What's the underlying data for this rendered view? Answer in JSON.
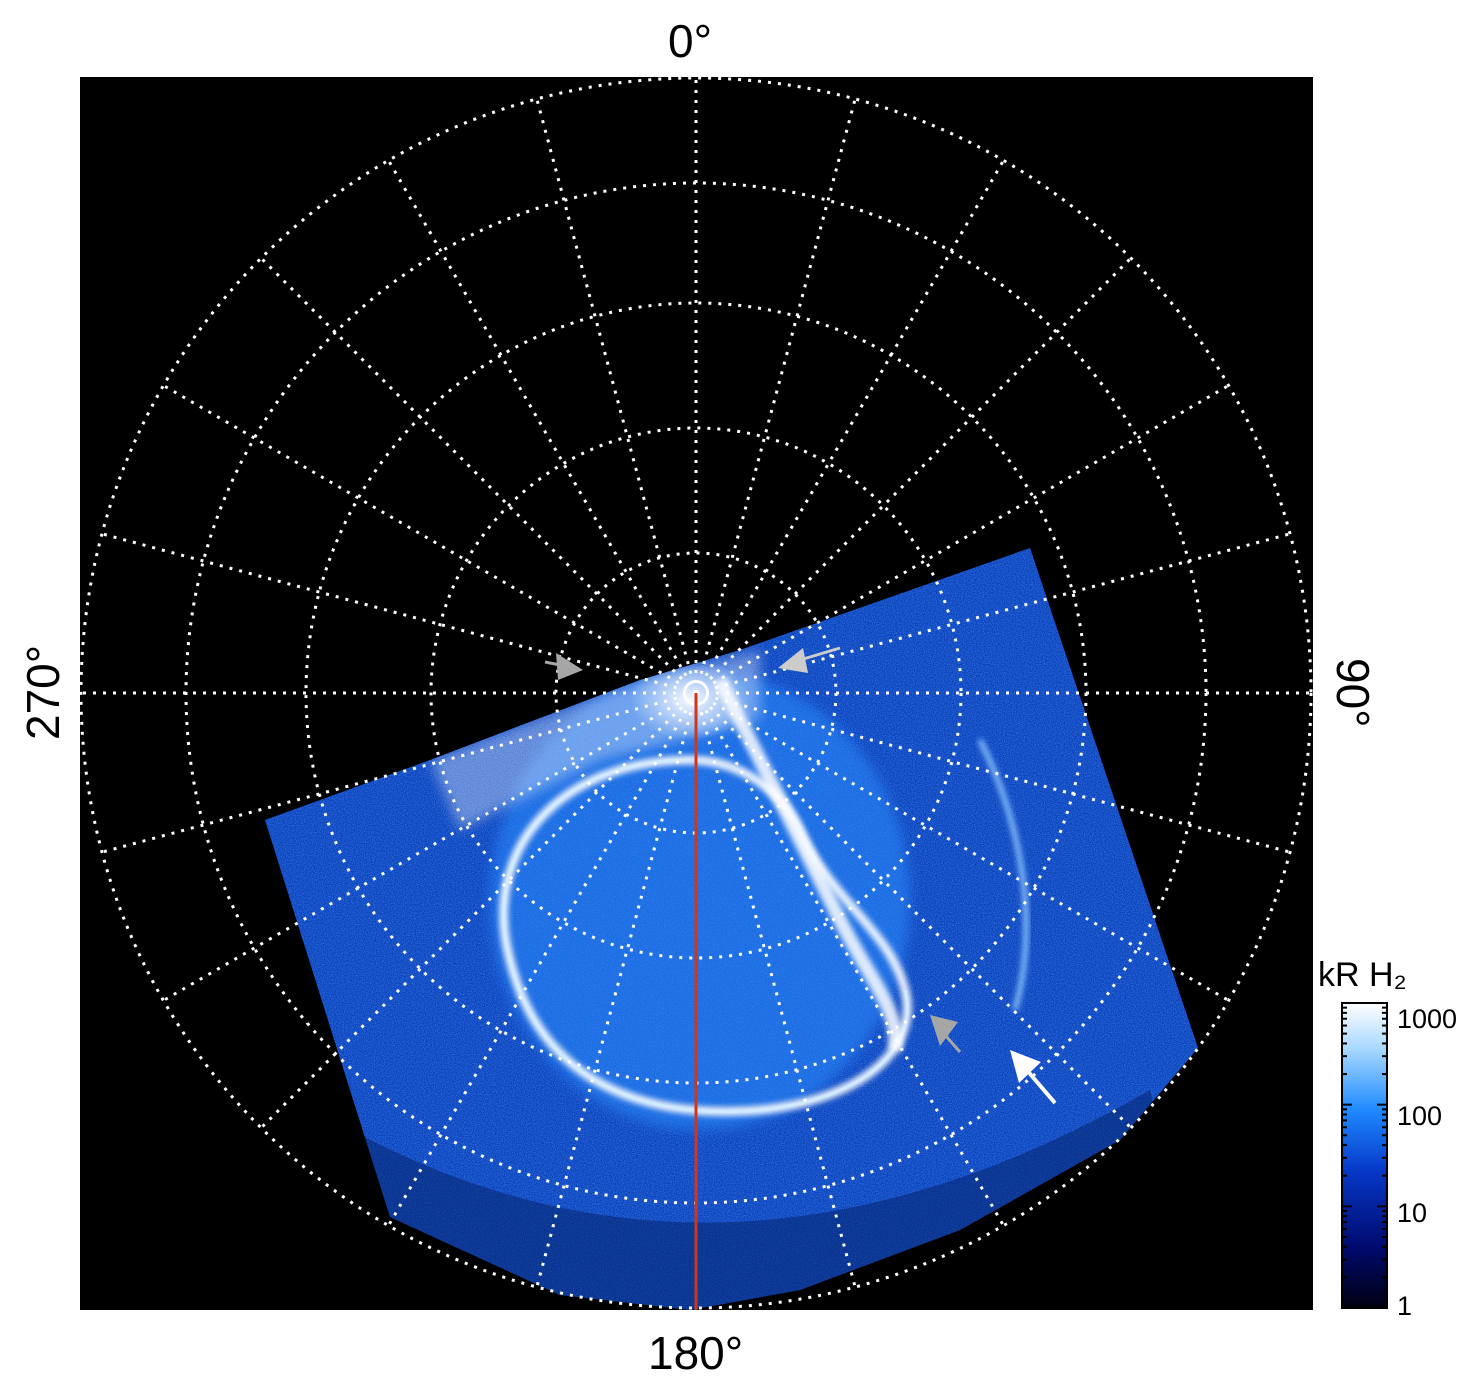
{
  "figure": {
    "labels": {
      "top": "0°",
      "bottom": "180°",
      "left": "270°",
      "right": "90°"
    },
    "colorbar": {
      "title": "kR H₂",
      "ticks": [
        "1000",
        "100",
        "10",
        "1"
      ],
      "scale": "log",
      "colors": [
        "#000010",
        "#000a6e",
        "#0638c8",
        "#1f8aff",
        "#a8d8ff",
        "#ffffff"
      ]
    },
    "colors": {
      "background": "#000000",
      "grid": "#ffffff",
      "meridian_line": "#d0361a",
      "arrow_white": "#ffffff",
      "arrow_gray": "#a6a6a6",
      "aurora_core": "#ffffff",
      "aurora_mid": "#2a8cff",
      "aurora_dark": "#0a2f9a"
    }
  }
}
